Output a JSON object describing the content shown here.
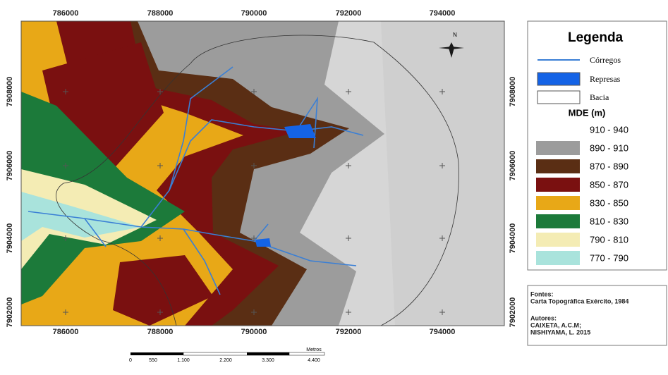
{
  "map": {
    "top_labels": [
      786000,
      788000,
      790000,
      792000,
      794000
    ],
    "bottom_labels": [
      786000,
      788000,
      790000,
      792000,
      794000
    ],
    "left_labels": [
      7908000,
      7906000,
      7904000,
      7902000
    ],
    "right_labels": [
      7908000,
      7906000,
      7904000,
      7902000
    ],
    "north": "N",
    "scale_unit": "Metros",
    "scale_labels": [
      "0",
      "550",
      "1.100",
      "2.200",
      "3.300",
      "4.400"
    ]
  },
  "legend": {
    "title": "Legenda",
    "items": [
      {
        "label": "Córregos",
        "color": "#3a7fd5"
      },
      {
        "label": "Represas",
        "color": "#1463e6"
      },
      {
        "label": "Bacia",
        "color": "#ffffff"
      }
    ],
    "mde_title": "MDE (m)",
    "classes": [
      {
        "label": "910 - 940",
        "color": "#ffffff"
      },
      {
        "label": "890 - 910",
        "color": "#9c9c9c"
      },
      {
        "label": "870 - 890",
        "color": "#5a2e14"
      },
      {
        "label": "850 - 870",
        "color": "#7a1010"
      },
      {
        "label": "830 - 850",
        "color": "#e8a817"
      },
      {
        "label": "810 - 830",
        "color": "#1c7a3a"
      },
      {
        "label": "790 - 810",
        "color": "#f4ecb4"
      },
      {
        "label": "770 - 790",
        "color": "#a9e3dc"
      }
    ]
  },
  "credits": {
    "sources_title": "Fontes:",
    "sources": "Carta Topográfica Exército, 1984",
    "authors_title": "Autores:",
    "authors": [
      "CAIXETA, A.C.M;",
      "NISHIYAMA, L. 2015"
    ]
  }
}
